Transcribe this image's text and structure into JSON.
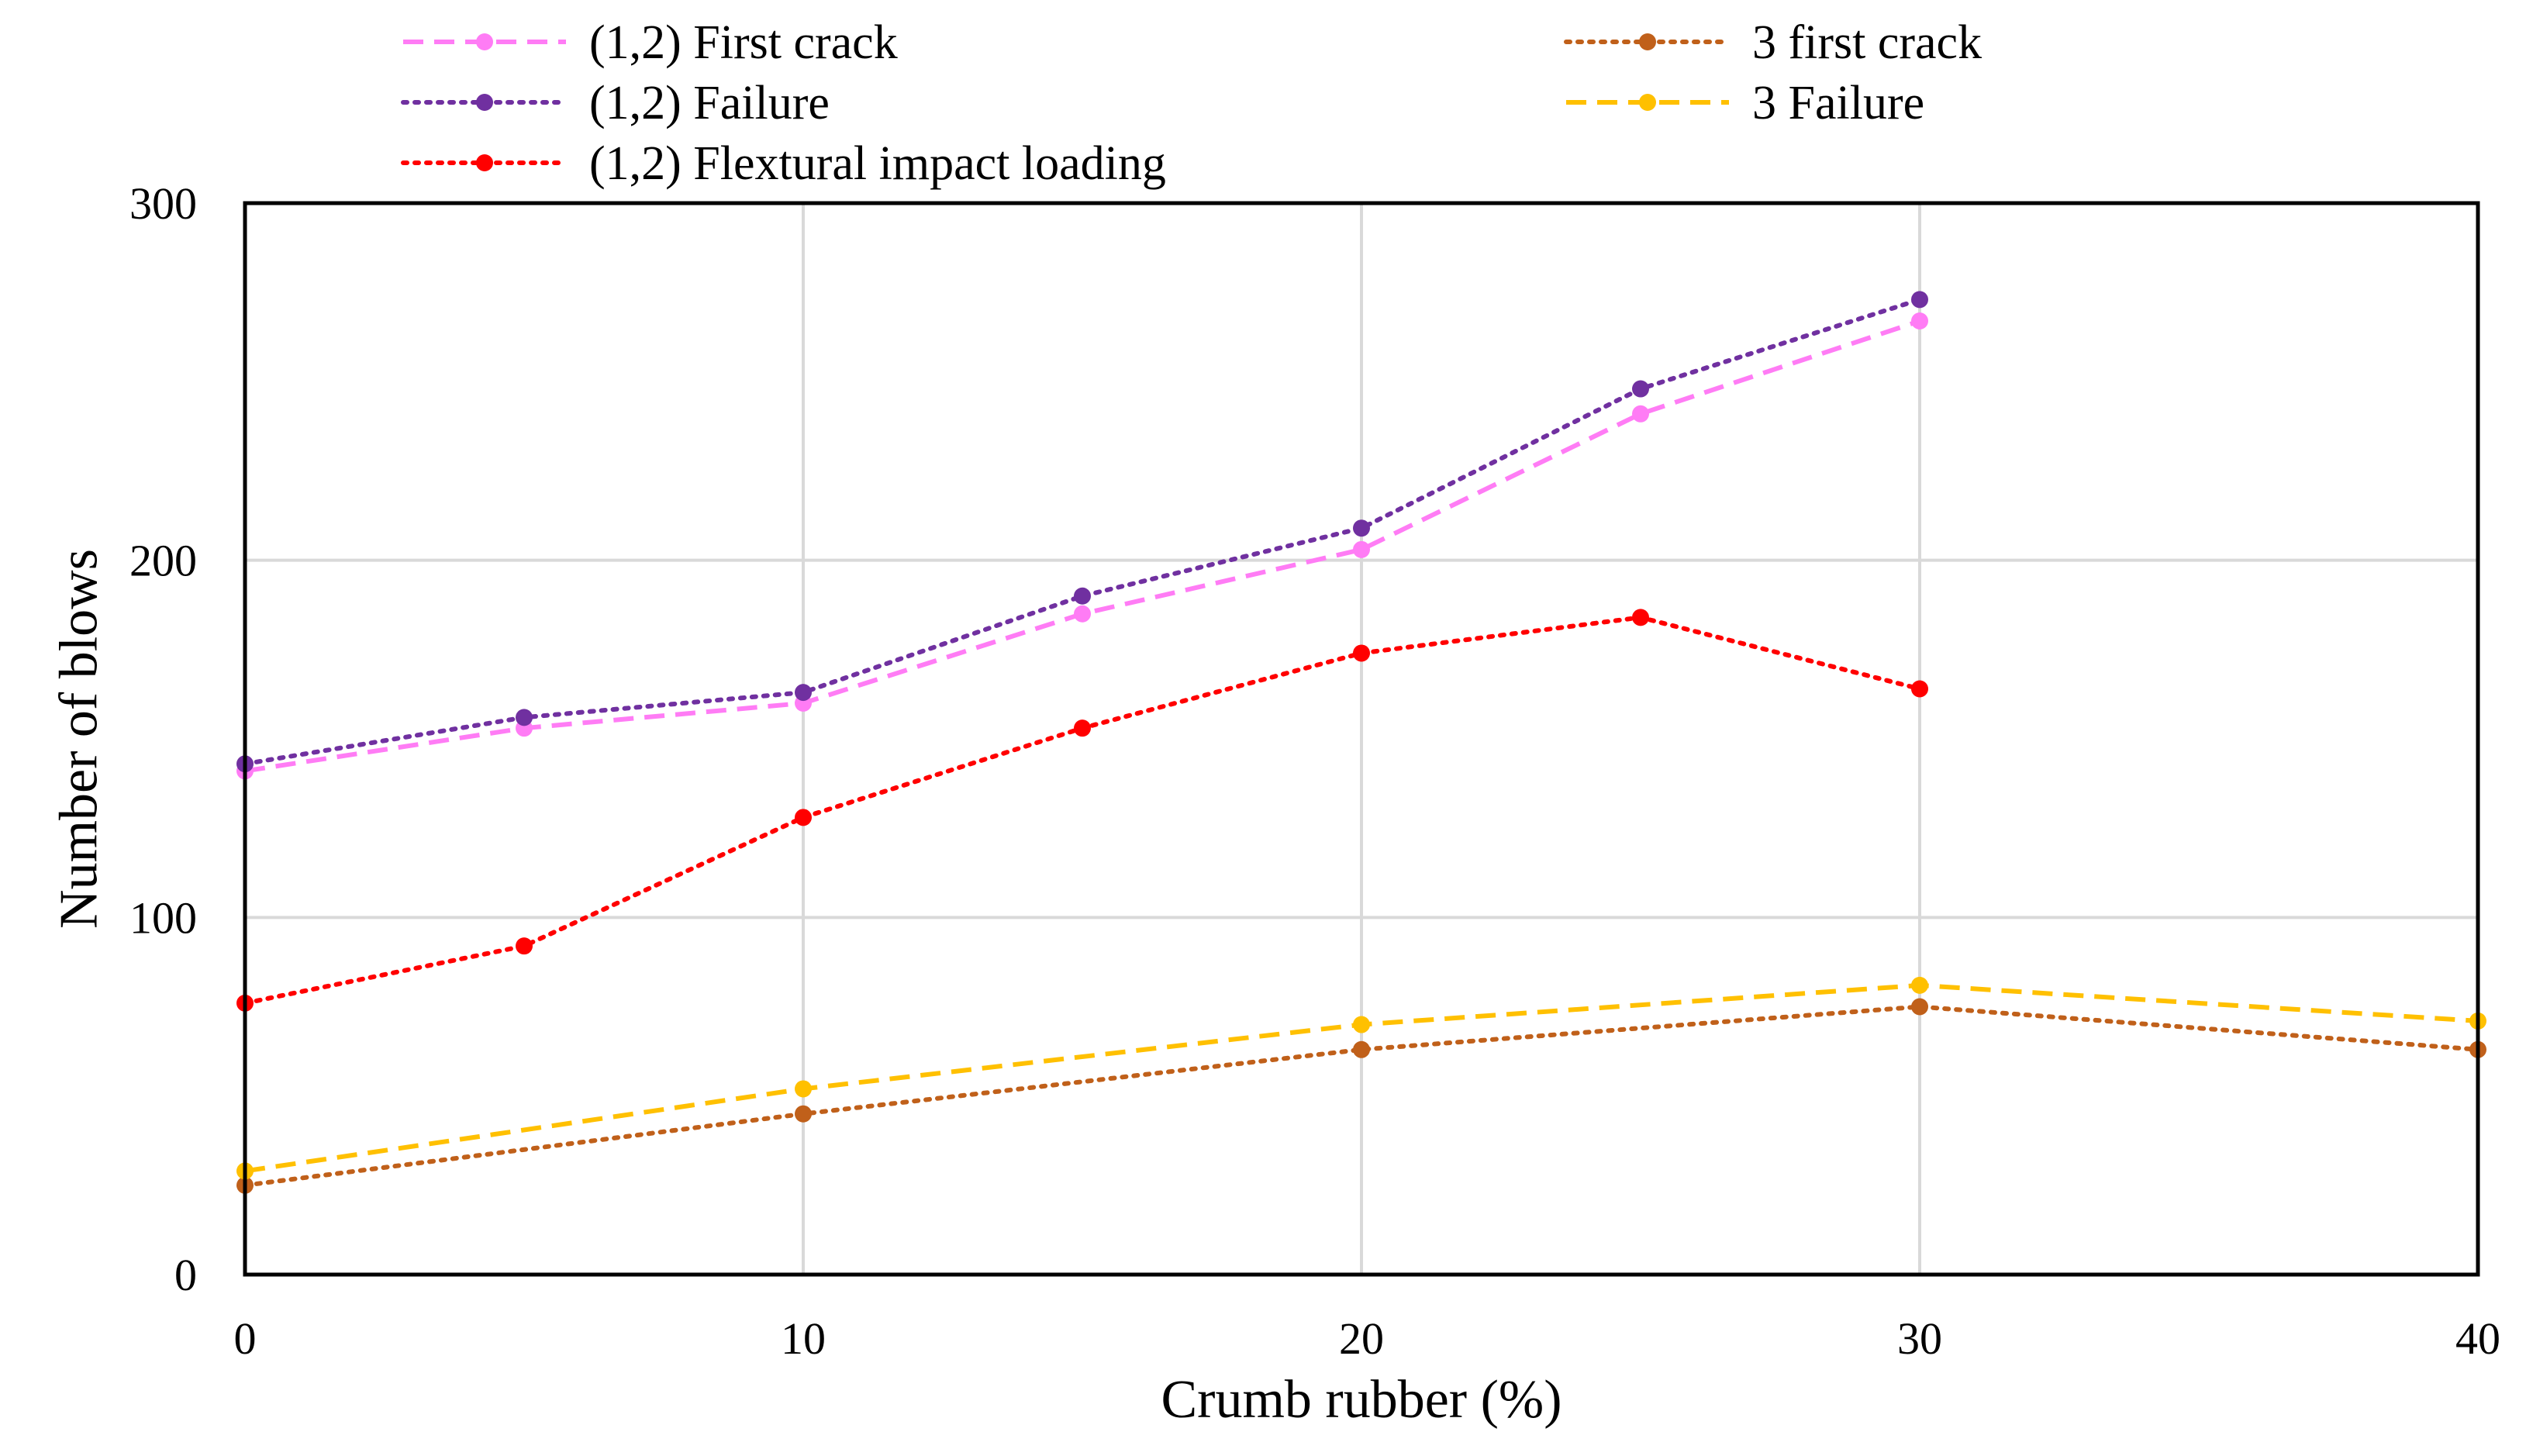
{
  "chart_data": {
    "type": "line",
    "xlabel": "Crumb rubber (%)",
    "ylabel": "Number of  blows",
    "xlim": [
      0,
      40
    ],
    "ylim": [
      0,
      300
    ],
    "xticks": [
      0,
      10,
      20,
      30,
      40
    ],
    "yticks": [
      0,
      100,
      200,
      300
    ],
    "grid": true,
    "legend_position": "top",
    "series": [
      {
        "name": "(1,2) First crack",
        "color": "#ff7cf5",
        "dash": "dashed",
        "x": [
          0,
          5,
          10,
          15,
          20,
          25,
          30
        ],
        "y": [
          141,
          153,
          160,
          185,
          203,
          241,
          267
        ]
      },
      {
        "name": "(1,2) Failure",
        "color": "#7030a0",
        "dash": "dotted",
        "x": [
          0,
          5,
          10,
          15,
          20,
          25,
          30
        ],
        "y": [
          143,
          156,
          163,
          190,
          209,
          248,
          273
        ]
      },
      {
        "name": "(1,2) Flextural impact loading",
        "color": "#ff0000",
        "dash": "dotted",
        "x": [
          0,
          5,
          10,
          15,
          20,
          25,
          30
        ],
        "y": [
          76,
          92,
          128,
          153,
          174,
          184,
          164
        ]
      },
      {
        "name": "3 first crack",
        "color": "#c0601a",
        "dash": "dotted",
        "x": [
          0,
          10,
          20,
          30,
          40
        ],
        "y": [
          25,
          45,
          63,
          75,
          63
        ]
      },
      {
        "name": "3 Failure",
        "color": "#ffc000",
        "dash": "dashed",
        "x": [
          0,
          10,
          20,
          30,
          40
        ],
        "y": [
          29,
          52,
          70,
          81,
          71
        ]
      }
    ]
  }
}
